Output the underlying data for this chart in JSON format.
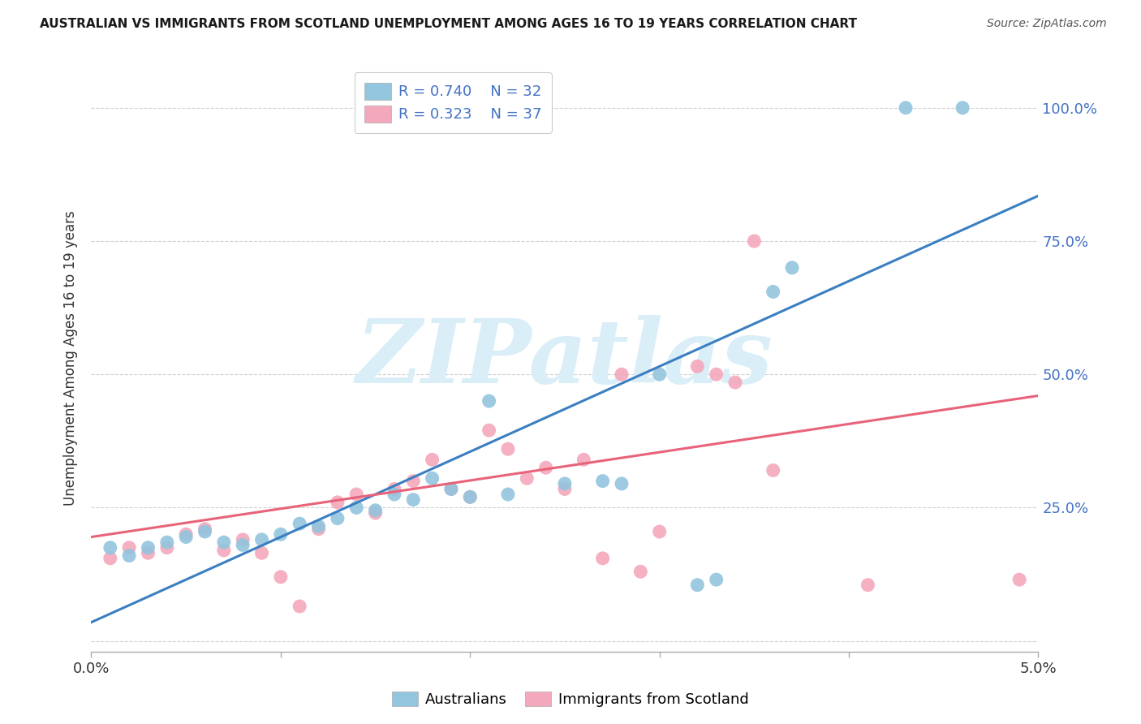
{
  "title": "AUSTRALIAN VS IMMIGRANTS FROM SCOTLAND UNEMPLOYMENT AMONG AGES 16 TO 19 YEARS CORRELATION CHART",
  "source": "Source: ZipAtlas.com",
  "ylabel": "Unemployment Among Ages 16 to 19 years",
  "ytick_labels": [
    "",
    "25.0%",
    "50.0%",
    "75.0%",
    "100.0%"
  ],
  "ytick_values": [
    0.0,
    0.25,
    0.5,
    0.75,
    1.0
  ],
  "legend_blue_r": "R = 0.740",
  "legend_blue_n": "N = 32",
  "legend_pink_r": "R = 0.323",
  "legend_pink_n": "N = 37",
  "legend_label_blue": "Australians",
  "legend_label_pink": "Immigrants from Scotland",
  "blue_color": "#92c5de",
  "pink_color": "#f4a8bc",
  "blue_line_color": "#3a7fc1",
  "pink_line_color": "#e8637a",
  "watermark": "ZIPatlas",
  "watermark_color": "#daeef8",
  "blue_scatter_x": [
    0.001,
    0.002,
    0.003,
    0.004,
    0.005,
    0.006,
    0.007,
    0.008,
    0.009,
    0.01,
    0.011,
    0.012,
    0.013,
    0.014,
    0.015,
    0.016,
    0.017,
    0.018,
    0.019,
    0.02,
    0.021,
    0.022,
    0.025,
    0.027,
    0.028,
    0.03,
    0.032,
    0.033,
    0.036,
    0.037,
    0.043,
    0.046
  ],
  "blue_scatter_y": [
    0.175,
    0.16,
    0.175,
    0.185,
    0.195,
    0.205,
    0.185,
    0.18,
    0.19,
    0.2,
    0.22,
    0.215,
    0.23,
    0.25,
    0.245,
    0.275,
    0.265,
    0.305,
    0.285,
    0.27,
    0.45,
    0.275,
    0.295,
    0.3,
    0.295,
    0.5,
    0.105,
    0.115,
    0.655,
    0.7,
    1.0,
    1.0
  ],
  "pink_scatter_x": [
    0.001,
    0.002,
    0.003,
    0.004,
    0.005,
    0.006,
    0.007,
    0.008,
    0.009,
    0.01,
    0.011,
    0.012,
    0.013,
    0.014,
    0.015,
    0.016,
    0.017,
    0.018,
    0.019,
    0.02,
    0.021,
    0.022,
    0.023,
    0.024,
    0.025,
    0.026,
    0.027,
    0.028,
    0.029,
    0.03,
    0.032,
    0.033,
    0.034,
    0.035,
    0.036,
    0.041,
    0.049
  ],
  "pink_scatter_y": [
    0.155,
    0.175,
    0.165,
    0.175,
    0.2,
    0.21,
    0.17,
    0.19,
    0.165,
    0.12,
    0.065,
    0.21,
    0.26,
    0.275,
    0.24,
    0.285,
    0.3,
    0.34,
    0.285,
    0.27,
    0.395,
    0.36,
    0.305,
    0.325,
    0.285,
    0.34,
    0.155,
    0.5,
    0.13,
    0.205,
    0.515,
    0.5,
    0.485,
    0.75,
    0.32,
    0.105,
    0.115
  ],
  "blue_line_x": [
    0.0,
    0.05
  ],
  "blue_line_y": [
    0.035,
    0.835
  ],
  "pink_line_x": [
    0.0,
    0.05
  ],
  "pink_line_y": [
    0.195,
    0.46
  ],
  "xlim": [
    0.0,
    0.05
  ],
  "ylim": [
    -0.02,
    1.08
  ],
  "background_color": "#ffffff",
  "grid_color": "#d0d0d0"
}
